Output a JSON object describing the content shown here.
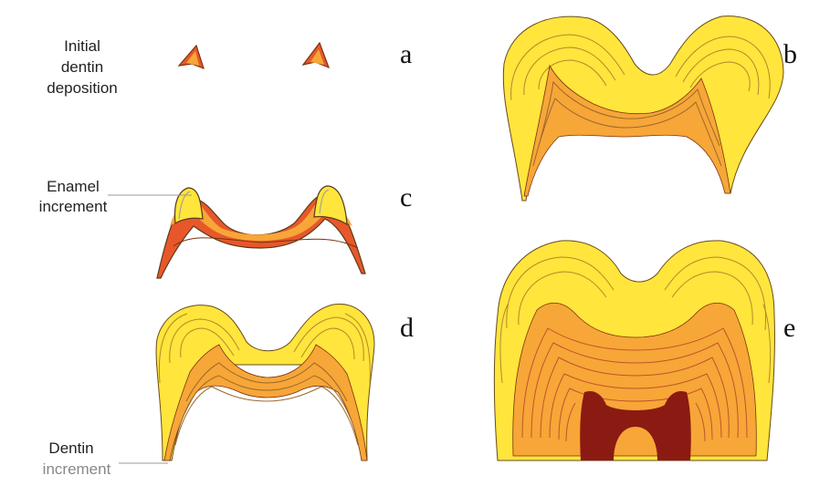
{
  "colors": {
    "enamel": "#ffe53c",
    "enamel_light": "#fff27a",
    "dentin": "#f7a638",
    "dentin_dark": "#e8572a",
    "pulp": "#8b1a12",
    "increment_line": "#9b6a2a",
    "outline": "#5a3a1a"
  },
  "labels": {
    "initial_line1": "Initial",
    "initial_line2": "dentin",
    "initial_line3": "deposition",
    "enamel_line1": "Enamel",
    "enamel_line2": "increment",
    "dentin_line1": "Dentin",
    "dentin_line2": "increment"
  },
  "panels": [
    {
      "letter": "a"
    },
    {
      "letter": "b"
    },
    {
      "letter": "c"
    },
    {
      "letter": "d"
    },
    {
      "letter": "e"
    }
  ]
}
